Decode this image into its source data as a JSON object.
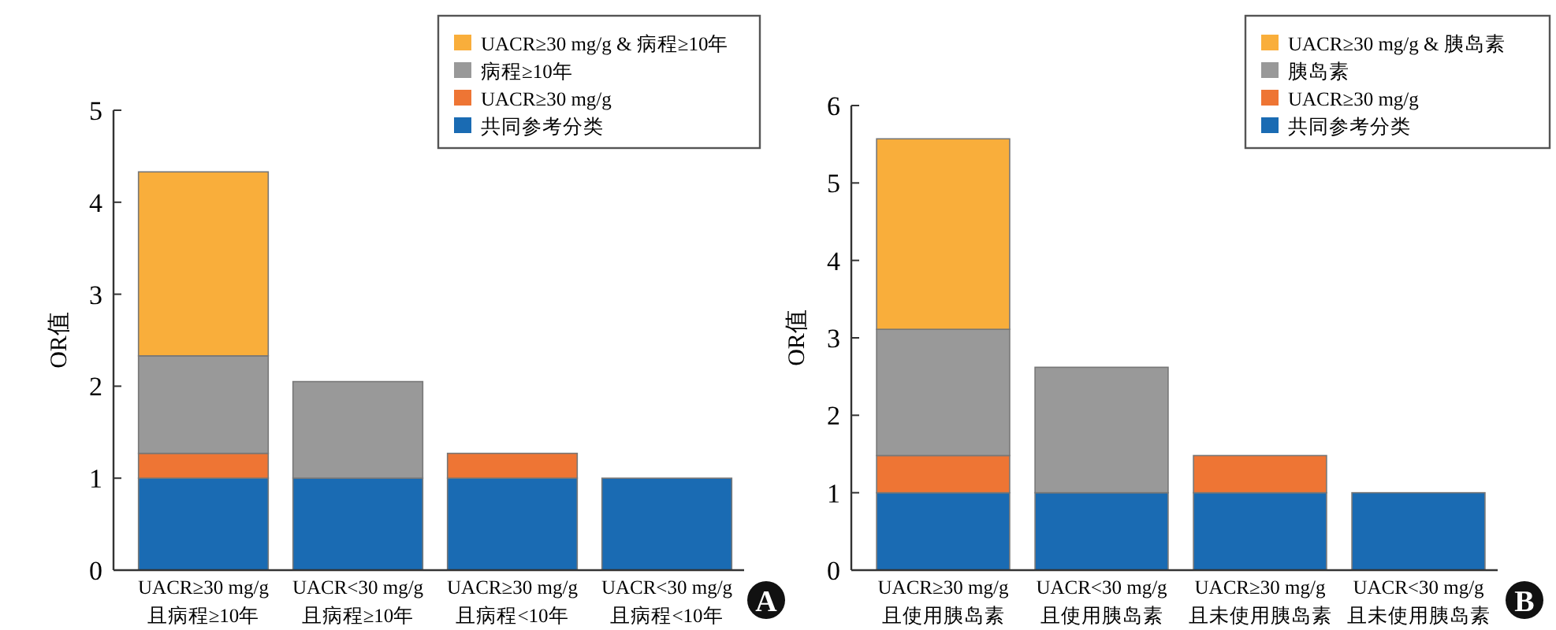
{
  "chart_data": [
    {
      "type": "bar",
      "stacked": true,
      "ylabel": "OR值",
      "categories": [
        "UACR≥30 mg/g\n且病程≥10年",
        "UACR<30 mg/g\n且病程≥10年",
        "UACR≥30 mg/g\n且病程<10年",
        "UACR<30 mg/g\n且病程<10年"
      ],
      "series": [
        {
          "name": "共同参考分类",
          "color": "#1a6bb3",
          "values": [
            1,
            1,
            1,
            1
          ]
        },
        {
          "name": "UACR≥30 mg/g",
          "color": "#ee7534",
          "values": [
            0.27,
            null,
            0.27,
            null
          ]
        },
        {
          "name": "病程≥10年",
          "color": "#999999",
          "values": [
            1.06,
            1.05,
            null,
            null
          ]
        },
        {
          "name": "UACR≥30 mg/g & 病程≥10年",
          "color": "#f9ae3b",
          "values": [
            2.0,
            null,
            null,
            null
          ]
        }
      ],
      "ylim": [
        0,
        5
      ],
      "yticks": [
        0,
        1,
        2,
        3,
        4,
        5
      ],
      "grid": false,
      "legend": "top right",
      "annotations": [
        "A"
      ]
    },
    {
      "type": "bar",
      "stacked": true,
      "ylabel": "OR值",
      "categories": [
        "UACR≥30 mg/g\n且使用胰岛素",
        "UACR<30 mg/g\n且使用胰岛素",
        "UACR≥30 mg/g\n且未使用胰岛素",
        "UACR<30 mg/g\n且未使用胰岛素"
      ],
      "series": [
        {
          "name": "共同参考分类",
          "color": "#1a6bb3",
          "values": [
            1,
            1,
            1,
            1
          ]
        },
        {
          "name": "UACR≥30 mg/g",
          "color": "#ee7534",
          "values": [
            0.48,
            null,
            0.48,
            null
          ]
        },
        {
          "name": "胰岛素",
          "color": "#999999",
          "values": [
            1.63,
            1.62,
            null,
            null
          ]
        },
        {
          "name": "UACR≥30 mg/g & 胰岛素",
          "color": "#f9ae3b",
          "values": [
            2.46,
            null,
            null,
            null
          ]
        }
      ],
      "ylim": [
        0,
        6
      ],
      "yticks": [
        0,
        1,
        2,
        3,
        4,
        5,
        6
      ],
      "grid": false,
      "legend": "top right",
      "annotations": [
        "B"
      ]
    }
  ]
}
